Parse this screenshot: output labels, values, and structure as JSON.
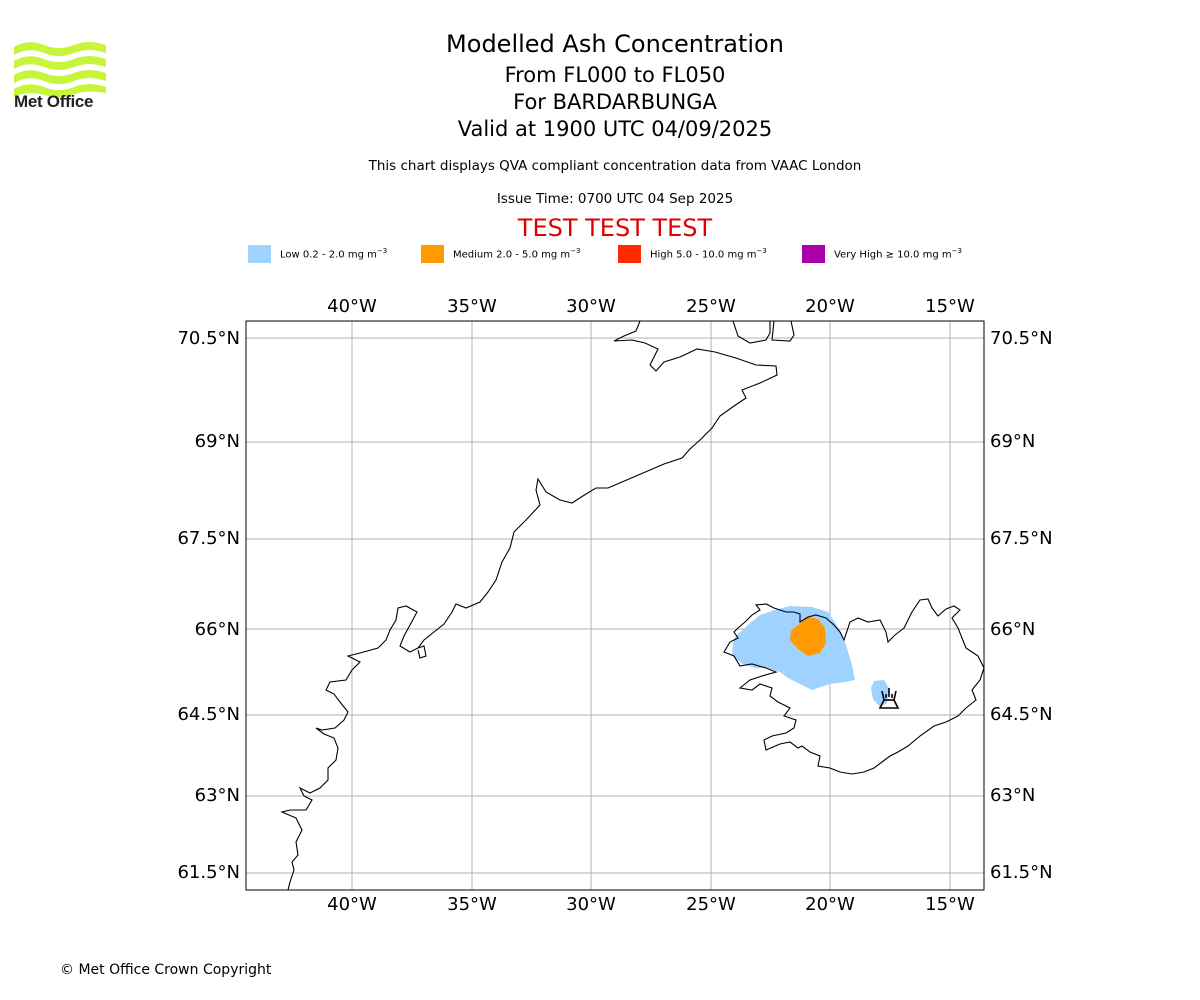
{
  "header": {
    "logo_text": "Met Office",
    "title": "Modelled Ash Concentration",
    "level_range": "From FL000 to FL050",
    "volcano": "For BARDARBUNGA",
    "valid_time": "Valid at 1900 UTC 04/09/2025",
    "description": "This chart displays QVA compliant concentration data from VAAC London",
    "issue_time": "Issue Time: 0700 UTC 04 Sep 2025",
    "test_banner": "TEST TEST TEST"
  },
  "legend": [
    {
      "label": "Low 0.2 - 2.0 mg m",
      "color": "#a0d2ff"
    },
    {
      "label": "Medium 2.0 - 5.0 mg m",
      "color": "#ff9a00"
    },
    {
      "label": "High 5.0 - 10.0 mg m",
      "color": "#ff2a00"
    },
    {
      "label": "Very High ≥ 10.0 mg m",
      "color": "#aa00aa"
    }
  ],
  "legend_unit_exponent": "−3",
  "map": {
    "lon_labels": [
      "40°W",
      "35°W",
      "30°W",
      "25°W",
      "20°W",
      "15°W"
    ],
    "lat_labels": [
      "70.5°N",
      "69°N",
      "67.5°N",
      "66°N",
      "64.5°N",
      "63°N",
      "61.5°N"
    ],
    "volcano_marker": "volcano-icon"
  },
  "footer": {
    "copyright": "© Met Office Crown Copyright"
  }
}
